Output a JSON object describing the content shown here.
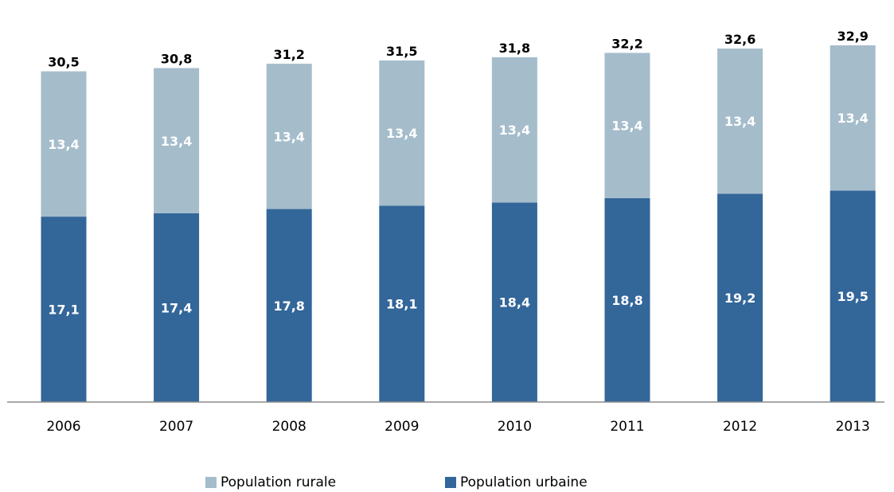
{
  "chart_data": {
    "type": "bar",
    "stacked": true,
    "categories": [
      "2006",
      "2007",
      "2008",
      "2009",
      "2010",
      "2011",
      "2012",
      "2013"
    ],
    "series": [
      {
        "name": "Population urbaine",
        "values": [
          17.1,
          17.4,
          17.8,
          18.1,
          18.4,
          18.8,
          19.2,
          19.5
        ],
        "color": "#336699"
      },
      {
        "name": "Population rurale",
        "values": [
          13.4,
          13.4,
          13.4,
          13.4,
          13.4,
          13.4,
          13.4,
          13.4
        ],
        "color": "#a5bccb"
      }
    ],
    "value_labels": {
      "Population urbaine": [
        "17,1",
        "17,4",
        "17,8",
        "18,1",
        "18,4",
        "18,8",
        "19,2",
        "19,5"
      ],
      "Population rurale": [
        "13,4",
        "13,4",
        "13,4",
        "13,4",
        "13,4",
        "13,4",
        "13,4",
        "13,4"
      ]
    },
    "totals": [
      30.5,
      30.8,
      31.2,
      31.5,
      31.8,
      32.2,
      32.6,
      32.9
    ],
    "total_labels": [
      "30,5",
      "30,8",
      "31,2",
      "31,5",
      "31,8",
      "32,2",
      "32,6",
      "32,9"
    ],
    "title": "",
    "xlabel": "",
    "ylabel": "",
    "ylim": [
      0,
      36
    ],
    "grid": false,
    "legend_position": "bottom",
    "legend_entries": [
      "Population rurale",
      "Population urbaine"
    ]
  }
}
